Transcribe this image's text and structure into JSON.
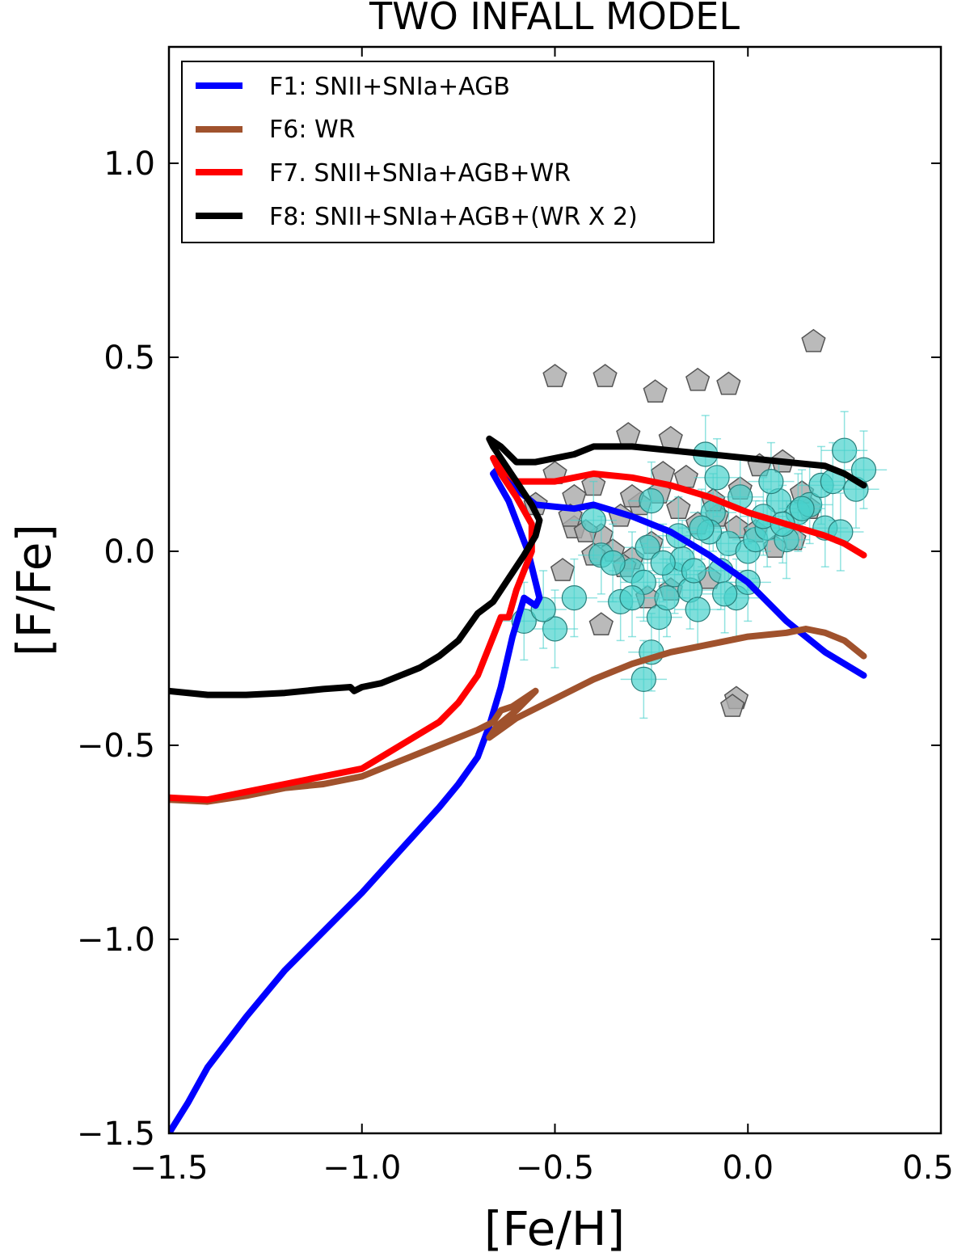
{
  "chart_data": {
    "type": "line",
    "title": "TWO INFALL MODEL",
    "xlabel": "[Fe/H]",
    "ylabel": "[F/Fe]",
    "xlim": [
      -1.5,
      0.5
    ],
    "ylim": [
      -1.5,
      1.3
    ],
    "xticks": [
      -1.5,
      -1.0,
      -0.5,
      0.0,
      0.5
    ],
    "xtick_labels": [
      "−1.5",
      "−1.0",
      "−0.5",
      "0.0",
      "0.5"
    ],
    "yticks": [
      -1.5,
      -1.0,
      -0.5,
      0.0,
      0.5,
      1.0
    ],
    "ytick_labels": [
      "−1.5",
      "−1.0",
      "−0.5",
      "0.0",
      "0.5",
      "1.0"
    ],
    "grid": false,
    "legend_position": "top-left",
    "series": [
      {
        "name": "F1: SNII+SNIa+AGB",
        "color": "#0000ff",
        "x": [
          -1.5,
          -1.45,
          -1.4,
          -1.3,
          -1.2,
          -1.1,
          -1.0,
          -0.9,
          -0.8,
          -0.75,
          -0.7,
          -0.67,
          -0.64,
          -0.61,
          -0.58,
          -0.55,
          -0.54,
          -0.57,
          -0.62,
          -0.66,
          -0.65,
          -0.6,
          -0.55,
          -0.5,
          -0.45,
          -0.4,
          -0.3,
          -0.2,
          -0.1,
          0.0,
          0.1,
          0.2,
          0.3
        ],
        "y": [
          -1.5,
          -1.42,
          -1.33,
          -1.2,
          -1.08,
          -0.98,
          -0.88,
          -0.77,
          -0.66,
          -0.6,
          -0.53,
          -0.45,
          -0.35,
          -0.22,
          -0.12,
          -0.14,
          -0.12,
          0.0,
          0.13,
          0.2,
          0.21,
          0.16,
          0.12,
          0.115,
          0.11,
          0.12,
          0.09,
          0.05,
          -0.01,
          -0.08,
          -0.18,
          -0.26,
          -0.32
        ]
      },
      {
        "name": "F6: WR",
        "color": "#a0522d",
        "x": [
          -1.5,
          -1.4,
          -1.3,
          -1.2,
          -1.1,
          -1.0,
          -0.9,
          -0.8,
          -0.7,
          -0.66,
          -0.64,
          -0.61,
          -0.58,
          -0.55,
          -0.6,
          -0.65,
          -0.67,
          -0.6,
          -0.5,
          -0.4,
          -0.3,
          -0.2,
          -0.1,
          0.0,
          0.1,
          0.15,
          0.2,
          0.25,
          0.3
        ],
        "y": [
          -0.64,
          -0.645,
          -0.63,
          -0.61,
          -0.6,
          -0.58,
          -0.54,
          -0.5,
          -0.46,
          -0.44,
          -0.41,
          -0.4,
          -0.38,
          -0.36,
          -0.41,
          -0.45,
          -0.48,
          -0.43,
          -0.38,
          -0.33,
          -0.29,
          -0.26,
          -0.24,
          -0.22,
          -0.21,
          -0.2,
          -0.21,
          -0.23,
          -0.27
        ]
      },
      {
        "name": "F7. SNII+SNIa+AGB+WR",
        "color": "#ff0000",
        "x": [
          -1.5,
          -1.4,
          -1.3,
          -1.2,
          -1.1,
          -1.0,
          -0.95,
          -0.9,
          -0.85,
          -0.8,
          -0.75,
          -0.7,
          -0.66,
          -0.64,
          -0.62,
          -0.6,
          -0.58,
          -0.56,
          -0.56,
          -0.6,
          -0.64,
          -0.66,
          -0.64,
          -0.6,
          -0.5,
          -0.45,
          -0.4,
          -0.3,
          -0.2,
          -0.1,
          0.0,
          0.1,
          0.2,
          0.25,
          0.3
        ],
        "y": [
          -0.635,
          -0.64,
          -0.62,
          -0.6,
          -0.58,
          -0.56,
          -0.53,
          -0.5,
          -0.47,
          -0.44,
          -0.39,
          -0.32,
          -0.22,
          -0.17,
          -0.17,
          -0.1,
          -0.05,
          0.0,
          0.07,
          0.14,
          0.2,
          0.24,
          0.22,
          0.18,
          0.18,
          0.19,
          0.2,
          0.19,
          0.17,
          0.14,
          0.1,
          0.07,
          0.04,
          0.02,
          -0.01
        ]
      },
      {
        "name": "F8: SNII+SNIa+AGB+(WR X 2)",
        "color": "#000000",
        "x": [
          -1.5,
          -1.4,
          -1.3,
          -1.2,
          -1.1,
          -1.03,
          -1.02,
          -1.0,
          -0.95,
          -0.9,
          -0.85,
          -0.8,
          -0.75,
          -0.7,
          -0.66,
          -0.62,
          -0.58,
          -0.55,
          -0.54,
          -0.56,
          -0.6,
          -0.64,
          -0.66,
          -0.67,
          -0.64,
          -0.6,
          -0.55,
          -0.5,
          -0.45,
          -0.4,
          -0.3,
          -0.2,
          -0.1,
          0.0,
          0.1,
          0.2,
          0.25,
          0.3
        ],
        "y": [
          -0.36,
          -0.37,
          -0.37,
          -0.365,
          -0.355,
          -0.35,
          -0.36,
          -0.35,
          -0.34,
          -0.32,
          -0.3,
          -0.27,
          -0.23,
          -0.16,
          -0.13,
          -0.07,
          -0.01,
          0.04,
          0.08,
          0.12,
          0.18,
          0.24,
          0.27,
          0.29,
          0.27,
          0.23,
          0.23,
          0.24,
          0.25,
          0.27,
          0.27,
          0.26,
          0.25,
          0.24,
          0.23,
          0.22,
          0.2,
          0.17
        ]
      }
    ],
    "scatter_series": [
      {
        "name": "pentagon data",
        "marker": "pentagon",
        "color": "#a9a9a9",
        "x": [
          -0.5,
          -0.37,
          -0.24,
          -0.13,
          -0.05,
          0.17,
          -0.31,
          -0.2,
          -0.5,
          -0.45,
          -0.4,
          -0.45,
          -0.38,
          -0.33,
          -0.28,
          -0.23,
          -0.18,
          -0.13,
          -0.08,
          -0.03,
          0.02,
          0.07,
          0.12,
          0.16,
          -0.46,
          -0.42,
          -0.35,
          -0.3,
          -0.25,
          -0.16,
          -0.09,
          -0.02,
          0.03,
          0.09,
          0.14,
          -0.55,
          -0.48,
          -0.4,
          -0.32,
          -0.26,
          -0.2,
          -0.1,
          -0.3,
          -0.22,
          -0.38,
          -0.03,
          -0.04
        ],
        "y": [
          0.45,
          0.45,
          0.41,
          0.44,
          0.43,
          0.54,
          0.3,
          0.29,
          0.2,
          0.14,
          0.17,
          0.06,
          0.04,
          0.09,
          0.12,
          0.15,
          0.11,
          0.07,
          0.09,
          0.06,
          0.05,
          0.01,
          0.03,
          0.11,
          0.09,
          0.05,
          0.0,
          -0.02,
          0.02,
          0.19,
          0.13,
          0.16,
          0.22,
          0.23,
          0.15,
          0.12,
          -0.05,
          -0.01,
          -0.04,
          -0.12,
          -0.1,
          -0.07,
          0.14,
          0.2,
          -0.19,
          -0.38,
          -0.4
        ]
      },
      {
        "name": "circle data with error bars",
        "marker": "circle",
        "color": "#48d1cc",
        "x": [
          -0.5,
          -0.45,
          -0.38,
          -0.33,
          -0.3,
          -0.27,
          -0.25,
          -0.23,
          -0.21,
          -0.19,
          -0.17,
          -0.15,
          -0.13,
          -0.11,
          -0.09,
          -0.07,
          -0.05,
          -0.03,
          0.0,
          0.02,
          0.05,
          0.08,
          0.1,
          0.13,
          0.16,
          0.19,
          0.22,
          0.25,
          0.28,
          0.3,
          -0.58,
          -0.53,
          -0.4,
          -0.35,
          -0.3,
          -0.26,
          -0.22,
          -0.18,
          -0.14,
          -0.1,
          -0.06,
          -0.02,
          0.04,
          0.09,
          0.14,
          0.2,
          0.24,
          -0.25,
          -0.27,
          -0.12,
          -0.08,
          0.0,
          0.06
        ],
        "y": [
          -0.2,
          -0.12,
          -0.01,
          -0.13,
          -0.05,
          -0.08,
          -0.26,
          -0.17,
          -0.12,
          -0.06,
          -0.02,
          -0.1,
          -0.15,
          0.25,
          0.1,
          -0.05,
          0.02,
          -0.12,
          0.0,
          0.03,
          0.06,
          0.13,
          0.03,
          0.1,
          0.12,
          0.17,
          0.18,
          0.26,
          0.16,
          0.21,
          -0.18,
          -0.15,
          0.08,
          -0.03,
          -0.12,
          0.01,
          -0.03,
          0.04,
          -0.05,
          0.05,
          -0.11,
          0.14,
          0.09,
          0.07,
          0.11,
          0.06,
          0.05,
          0.13,
          -0.33,
          0.06,
          0.19,
          -0.08,
          0.18
        ],
        "yerr": 0.1,
        "xerr": 0.06
      }
    ],
    "legend": [
      {
        "label": "F1: SNII+SNIa+AGB",
        "color": "#0000ff"
      },
      {
        "label": "F6: WR",
        "color": "#a0522d"
      },
      {
        "label": "F7. SNII+SNIa+AGB+WR",
        "color": "#ff0000"
      },
      {
        "label": "F8: SNII+SNIa+AGB+(WR X 2)",
        "color": "#000000"
      }
    ]
  }
}
